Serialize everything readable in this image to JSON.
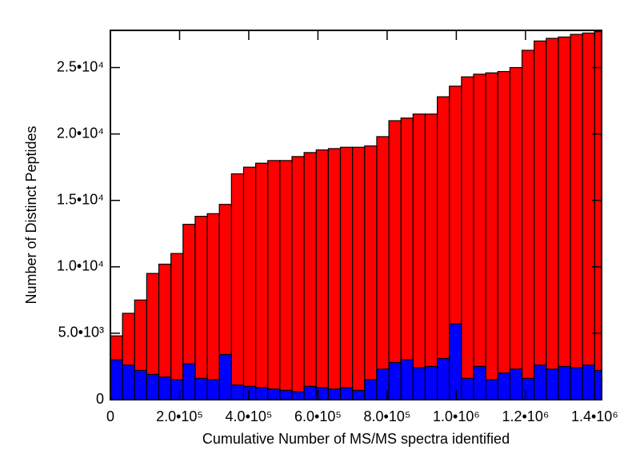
{
  "chart_data": {
    "type": "histogram",
    "x_label": "Cumulative Number of MS/MS spectra identified",
    "y_label": "Number of Distinct Peptides",
    "bins": [
      0,
      35000,
      70000,
      105000,
      140000,
      175000,
      210000,
      245000,
      280000,
      315000,
      350000,
      385000,
      420000,
      455000,
      490000,
      525000,
      560000,
      595000,
      630000,
      665000,
      700000,
      735000,
      770000,
      805000,
      840000,
      875000,
      910000,
      945000,
      980000,
      1015000,
      1050000,
      1085000,
      1120000,
      1155000,
      1190000,
      1225000,
      1260000,
      1295000,
      1330000,
      1365000,
      1400000,
      1420000
    ],
    "series": [
      {
        "color": "#ff0000",
        "values": [
          4800,
          6500,
          7500,
          9500,
          10200,
          11000,
          13200,
          13800,
          14000,
          14700,
          17000,
          17500,
          17800,
          18000,
          18000,
          18300,
          18600,
          18800,
          18900,
          19000,
          19000,
          19100,
          19800,
          21000,
          21200,
          21500,
          21500,
          22800,
          23600,
          24300,
          24500,
          24600,
          24700,
          25000,
          26300,
          27000,
          27200,
          27300,
          27500,
          27600,
          27700
        ]
      },
      {
        "color": "#0000ff",
        "values": [
          3000,
          2600,
          2200,
          1900,
          1700,
          1500,
          2700,
          1600,
          1500,
          3400,
          1100,
          1000,
          900,
          800,
          700,
          600,
          1000,
          900,
          800,
          900,
          700,
          1500,
          2300,
          2800,
          3000,
          2400,
          2500,
          3100,
          5700,
          1600,
          2500,
          1500,
          2000,
          2300,
          1600,
          2600,
          2300,
          2500,
          2400,
          2600,
          2200
        ]
      }
    ],
    "xlim": [
      0,
      1420000
    ],
    "ylim": [
      0,
      27800
    ],
    "xticks": [
      0,
      {
        "value": 200000,
        "label": "2.0•10⁵"
      },
      {
        "value": 400000,
        "label": "4.0•10⁵"
      },
      {
        "value": 600000,
        "label": "6.0•10⁵"
      },
      {
        "value": 800000,
        "label": "8.0•10⁵"
      },
      {
        "value": 1000000,
        "label": "1.0•10⁶"
      },
      {
        "value": 1200000,
        "label": "1.2•10⁶"
      },
      {
        "value": 1400000,
        "label": "1.4•10⁶"
      }
    ],
    "yticks": [
      0,
      {
        "value": 5000,
        "label": "5.0•10³"
      },
      {
        "value": 10000,
        "label": "1.0•10⁴"
      },
      {
        "value": 15000,
        "label": "1.5•10⁴"
      },
      {
        "value": 20000,
        "label": "2.0•10⁴"
      },
      {
        "value": 25000,
        "label": "2.5•10⁴"
      }
    ]
  }
}
